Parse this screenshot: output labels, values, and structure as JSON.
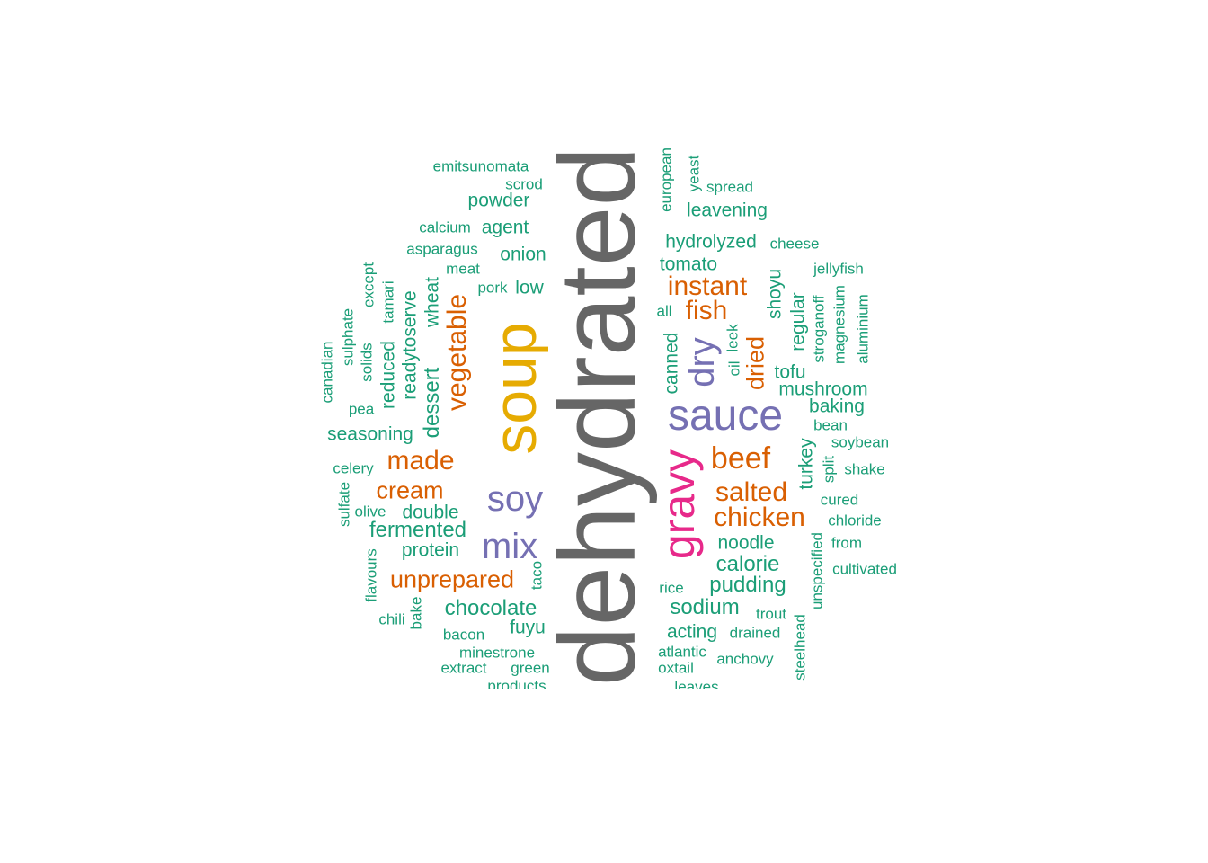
{
  "palette": {
    "gray": "#666666",
    "gold": "#E6AB02",
    "purple": "#7570B3",
    "pink": "#E7298A",
    "orange": "#D95F02",
    "teal": "#1B9E77"
  },
  "words": [
    {
      "text": "dehydrated",
      "color": "gray"
    },
    {
      "text": "soup",
      "color": "gold"
    },
    {
      "text": "sauce",
      "color": "purple"
    },
    {
      "text": "gravy",
      "color": "pink"
    },
    {
      "text": "dry",
      "color": "purple"
    },
    {
      "text": "soy",
      "color": "purple"
    },
    {
      "text": "mix",
      "color": "purple"
    },
    {
      "text": "beef",
      "color": "orange"
    },
    {
      "text": "made",
      "color": "orange"
    },
    {
      "text": "instant",
      "color": "orange"
    },
    {
      "text": "fish",
      "color": "orange"
    },
    {
      "text": "salted",
      "color": "orange"
    },
    {
      "text": "chicken",
      "color": "orange"
    },
    {
      "text": "cream",
      "color": "orange"
    },
    {
      "text": "unprepared",
      "color": "orange"
    },
    {
      "text": "vegetable",
      "color": "orange"
    },
    {
      "text": "dried",
      "color": "orange"
    },
    {
      "text": "emitsunomata",
      "color": "teal"
    },
    {
      "text": "scrod",
      "color": "teal"
    },
    {
      "text": "powder",
      "color": "teal"
    },
    {
      "text": "calcium",
      "color": "teal"
    },
    {
      "text": "agent",
      "color": "teal"
    },
    {
      "text": "asparagus",
      "color": "teal"
    },
    {
      "text": "onion",
      "color": "teal"
    },
    {
      "text": "meat",
      "color": "teal"
    },
    {
      "text": "pork",
      "color": "teal"
    },
    {
      "text": "low",
      "color": "teal"
    },
    {
      "text": "european",
      "color": "teal"
    },
    {
      "text": "yeast",
      "color": "teal"
    },
    {
      "text": "spread",
      "color": "teal"
    },
    {
      "text": "leavening",
      "color": "teal"
    },
    {
      "text": "hydrolyzed",
      "color": "teal"
    },
    {
      "text": "cheese",
      "color": "teal"
    },
    {
      "text": "tomato",
      "color": "teal"
    },
    {
      "text": "jellyfish",
      "color": "teal"
    },
    {
      "text": "shoyu",
      "color": "teal"
    },
    {
      "text": "regular",
      "color": "teal"
    },
    {
      "text": "stroganoff",
      "color": "teal"
    },
    {
      "text": "magnesium",
      "color": "teal"
    },
    {
      "text": "aluminium",
      "color": "teal"
    },
    {
      "text": "all",
      "color": "teal"
    },
    {
      "text": "leek",
      "color": "teal"
    },
    {
      "text": "oil",
      "color": "teal"
    },
    {
      "text": "canned",
      "color": "teal"
    },
    {
      "text": "tofu",
      "color": "teal"
    },
    {
      "text": "mushroom",
      "color": "teal"
    },
    {
      "text": "baking",
      "color": "teal"
    },
    {
      "text": "bean",
      "color": "teal"
    },
    {
      "text": "soybean",
      "color": "teal"
    },
    {
      "text": "turkey",
      "color": "teal"
    },
    {
      "text": "split",
      "color": "teal"
    },
    {
      "text": "shake",
      "color": "teal"
    },
    {
      "text": "cured",
      "color": "teal"
    },
    {
      "text": "chloride",
      "color": "teal"
    },
    {
      "text": "from",
      "color": "teal"
    },
    {
      "text": "cultivated",
      "color": "teal"
    },
    {
      "text": "unspecified",
      "color": "teal"
    },
    {
      "text": "noodle",
      "color": "teal"
    },
    {
      "text": "calorie",
      "color": "teal"
    },
    {
      "text": "pudding",
      "color": "teal"
    },
    {
      "text": "rice",
      "color": "teal"
    },
    {
      "text": "sodium",
      "color": "teal"
    },
    {
      "text": "trout",
      "color": "teal"
    },
    {
      "text": "acting",
      "color": "teal"
    },
    {
      "text": "drained",
      "color": "teal"
    },
    {
      "text": "atlantic",
      "color": "teal"
    },
    {
      "text": "anchovy",
      "color": "teal"
    },
    {
      "text": "oxtail",
      "color": "teal"
    },
    {
      "text": "steelhead",
      "color": "teal"
    },
    {
      "text": "leaves",
      "color": "teal"
    },
    {
      "text": "except",
      "color": "teal"
    },
    {
      "text": "tamari",
      "color": "teal"
    },
    {
      "text": "sulphate",
      "color": "teal"
    },
    {
      "text": "canadian",
      "color": "teal"
    },
    {
      "text": "solids",
      "color": "teal"
    },
    {
      "text": "reduced",
      "color": "teal"
    },
    {
      "text": "readytoserve",
      "color": "teal"
    },
    {
      "text": "wheat",
      "color": "teal"
    },
    {
      "text": "dessert",
      "color": "teal"
    },
    {
      "text": "pea",
      "color": "teal"
    },
    {
      "text": "seasoning",
      "color": "teal"
    },
    {
      "text": "celery",
      "color": "teal"
    },
    {
      "text": "sulfate",
      "color": "teal"
    },
    {
      "text": "olive",
      "color": "teal"
    },
    {
      "text": "double",
      "color": "teal"
    },
    {
      "text": "fermented",
      "color": "teal"
    },
    {
      "text": "protein",
      "color": "teal"
    },
    {
      "text": "flavours",
      "color": "teal"
    },
    {
      "text": "taco",
      "color": "teal"
    },
    {
      "text": "chili",
      "color": "teal"
    },
    {
      "text": "bake",
      "color": "teal"
    },
    {
      "text": "chocolate",
      "color": "teal"
    },
    {
      "text": "fuyu",
      "color": "teal"
    },
    {
      "text": "bacon",
      "color": "teal"
    },
    {
      "text": "minestrone",
      "color": "teal"
    },
    {
      "text": "extract",
      "color": "teal"
    },
    {
      "text": "green",
      "color": "teal"
    },
    {
      "text": "products",
      "color": "teal"
    }
  ]
}
